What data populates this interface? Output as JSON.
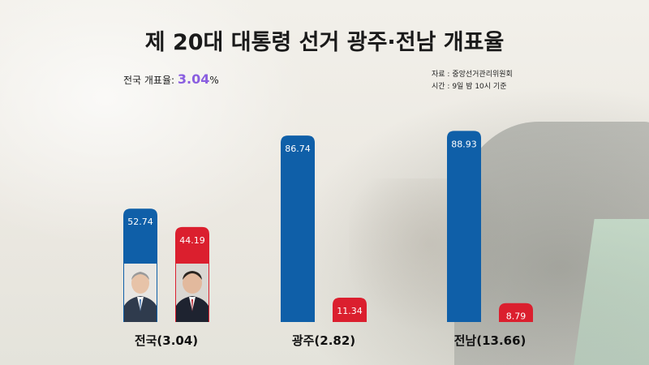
{
  "title": "제 20대 대통령 선거 광주·전남 개표율",
  "national_rate": {
    "label": "전국 개표율:",
    "value": "3.04",
    "unit": "%"
  },
  "source": {
    "line1": "자료 : 중앙선거관리위원회",
    "line2": "시간 : 9일 밤 10시 기준"
  },
  "colors": {
    "blue": "#0f5fa8",
    "red": "#db1f2e"
  },
  "chart_data": {
    "type": "bar",
    "categories": [
      "전국(3.04)",
      "광주(2.82)",
      "전남(13.66)"
    ],
    "series": [
      {
        "values": [
          52.74,
          86.74,
          88.93
        ],
        "color": "#0f5fa8"
      },
      {
        "values": [
          44.19,
          11.34,
          8.79
        ],
        "color": "#db1f2e"
      }
    ],
    "data_labels": [
      [
        "52.74",
        "86.74",
        "88.93"
      ],
      [
        "44.19",
        "11.34",
        "8.79"
      ]
    ],
    "ylim": [
      0,
      100
    ],
    "grid": false,
    "legend": "none"
  }
}
